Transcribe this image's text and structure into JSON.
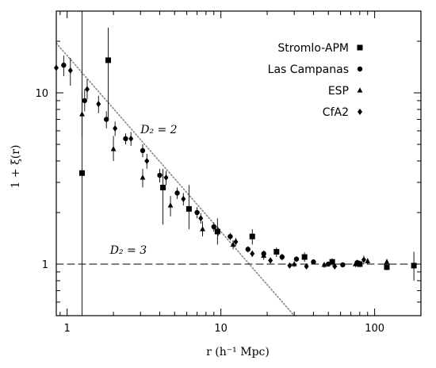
{
  "chart_data": {
    "type": "scatter",
    "xscale": "log",
    "yscale": "log",
    "xlim": [
      0.85,
      200
    ],
    "ylim": [
      0.5,
      30
    ],
    "xticks": [
      1,
      10,
      100
    ],
    "xtick_labels": [
      "1",
      "10",
      "100"
    ],
    "yticks": [
      1,
      10
    ],
    "ytick_labels": [
      "1",
      "10"
    ],
    "xlabel": "r (h⁻¹ Mpc)",
    "ylabel": "1 + ξ(r)",
    "legend_position": "top-right",
    "reference_lines": [
      {
        "name": "D₂ = 2",
        "style": "dotted",
        "color": "#888888",
        "x": [
          0.85,
          30
        ],
        "y": [
          19.5,
          0.5
        ]
      },
      {
        "name": "D₂ = 3",
        "style": "dashed",
        "color": "#000000",
        "x": [
          0.85,
          200
        ],
        "y": [
          1,
          1
        ]
      }
    ],
    "annotations": [
      {
        "text": "D₂ = 2",
        "x": 3.0,
        "y": 5.8
      },
      {
        "text": "D₂ = 3",
        "x": 1.9,
        "y": 1.15
      }
    ],
    "series": [
      {
        "name": "Stromlo-APM",
        "marker": "square",
        "points": [
          {
            "x": 1.25,
            "y": 3.4,
            "lo": 0.5,
            "hi": 30
          },
          {
            "x": 1.85,
            "y": 15.5,
            "lo": 7,
            "hi": 24
          },
          {
            "x": 4.2,
            "y": 2.8,
            "lo": 1.7,
            "hi": 3.6
          },
          {
            "x": 6.2,
            "y": 2.1,
            "lo": 1.6,
            "hi": 2.9
          },
          {
            "x": 9.5,
            "y": 1.55,
            "lo": 1.3,
            "hi": 1.85
          },
          {
            "x": 16,
            "y": 1.45,
            "lo": 1.3,
            "hi": 1.6
          },
          {
            "x": 23,
            "y": 1.18,
            "lo": 1.1,
            "hi": 1.25
          },
          {
            "x": 35,
            "y": 1.1,
            "lo": 1.03,
            "hi": 1.17
          },
          {
            "x": 53,
            "y": 1.03,
            "lo": 0.98,
            "hi": 1.08
          },
          {
            "x": 80,
            "y": 1.0,
            "lo": 0.96,
            "hi": 1.05
          },
          {
            "x": 120,
            "y": 0.96,
            "lo": 0.92,
            "hi": 1.0
          },
          {
            "x": 180,
            "y": 0.98,
            "lo": 0.8,
            "hi": 1.18
          }
        ]
      },
      {
        "name": "Las Campanas",
        "marker": "circle",
        "points": [
          {
            "x": 0.95,
            "y": 14.5,
            "lo": 12.5,
            "hi": 16.5
          },
          {
            "x": 1.3,
            "y": 9.0,
            "lo": 7.8,
            "hi": 10.5
          },
          {
            "x": 1.8,
            "y": 7.0,
            "lo": 6.2,
            "hi": 7.8
          },
          {
            "x": 2.4,
            "y": 5.4,
            "lo": 5.0,
            "hi": 5.8
          },
          {
            "x": 3.1,
            "y": 4.6,
            "lo": 4.2,
            "hi": 5.0
          },
          {
            "x": 4.0,
            "y": 3.3,
            "lo": 3.0,
            "hi": 3.6
          },
          {
            "x": 5.2,
            "y": 2.6,
            "lo": 2.4,
            "hi": 2.8
          },
          {
            "x": 7.0,
            "y": 2.0,
            "lo": 1.85,
            "hi": 2.15
          },
          {
            "x": 9.0,
            "y": 1.65,
            "lo": 1.55,
            "hi": 1.75
          },
          {
            "x": 11.5,
            "y": 1.45,
            "lo": 1.38,
            "hi": 1.52
          },
          {
            "x": 15,
            "y": 1.22,
            "lo": 1.17,
            "hi": 1.27
          },
          {
            "x": 19,
            "y": 1.15,
            "lo": 1.1,
            "hi": 1.2
          },
          {
            "x": 25,
            "y": 1.1,
            "lo": 1.05,
            "hi": 1.15
          },
          {
            "x": 31,
            "y": 1.07,
            "lo": 1.03,
            "hi": 1.11
          },
          {
            "x": 40,
            "y": 1.03,
            "lo": 1.0,
            "hi": 1.06
          },
          {
            "x": 50,
            "y": 1.0,
            "lo": 0.97,
            "hi": 1.03
          },
          {
            "x": 62,
            "y": 0.99,
            "lo": 0.96,
            "hi": 1.02
          },
          {
            "x": 77,
            "y": 1.02,
            "lo": 0.98,
            "hi": 1.06
          }
        ]
      },
      {
        "name": "ESP",
        "marker": "triangle",
        "points": [
          {
            "x": 1.25,
            "y": 7.5,
            "lo": 5.5,
            "hi": 10
          },
          {
            "x": 2.0,
            "y": 4.7,
            "lo": 4.0,
            "hi": 5.6
          },
          {
            "x": 3.1,
            "y": 3.2,
            "lo": 2.8,
            "hi": 3.6
          },
          {
            "x": 4.7,
            "y": 2.2,
            "lo": 1.9,
            "hi": 2.5
          },
          {
            "x": 7.6,
            "y": 1.6,
            "lo": 1.45,
            "hi": 1.78
          },
          {
            "x": 12,
            "y": 1.3,
            "lo": 1.22,
            "hi": 1.38
          },
          {
            "x": 19,
            "y": 1.12,
            "lo": 1.06,
            "hi": 1.18
          },
          {
            "x": 30,
            "y": 1.0,
            "lo": 0.96,
            "hi": 1.04
          },
          {
            "x": 47,
            "y": 0.99,
            "lo": 0.95,
            "hi": 1.03
          },
          {
            "x": 75,
            "y": 1.0,
            "lo": 0.96,
            "hi": 1.04
          },
          {
            "x": 90,
            "y": 1.04,
            "lo": 1.0,
            "hi": 1.08
          },
          {
            "x": 120,
            "y": 1.03,
            "lo": 0.99,
            "hi": 1.07
          }
        ]
      },
      {
        "name": "CfA2",
        "marker": "diamond",
        "points": [
          {
            "x": 0.85,
            "y": 14.0,
            "lo": 11.5,
            "hi": 17.0
          },
          {
            "x": 1.05,
            "y": 13.5,
            "lo": 11.0,
            "hi": 16.0
          },
          {
            "x": 1.35,
            "y": 10.5,
            "lo": 9.2,
            "hi": 12.0
          },
          {
            "x": 1.6,
            "y": 8.6,
            "lo": 7.6,
            "hi": 9.6
          },
          {
            "x": 2.05,
            "y": 6.2,
            "lo": 5.6,
            "hi": 6.8
          },
          {
            "x": 2.6,
            "y": 5.4,
            "lo": 4.9,
            "hi": 5.9
          },
          {
            "x": 3.3,
            "y": 4.0,
            "lo": 3.6,
            "hi": 4.4
          },
          {
            "x": 4.4,
            "y": 3.2,
            "lo": 2.9,
            "hi": 3.5
          },
          {
            "x": 5.7,
            "y": 2.4,
            "lo": 2.2,
            "hi": 2.6
          },
          {
            "x": 7.4,
            "y": 1.85,
            "lo": 1.72,
            "hi": 1.98
          },
          {
            "x": 9.6,
            "y": 1.55,
            "lo": 1.46,
            "hi": 1.64
          },
          {
            "x": 12.5,
            "y": 1.35,
            "lo": 1.28,
            "hi": 1.42
          },
          {
            "x": 16,
            "y": 1.15,
            "lo": 1.1,
            "hi": 1.2
          },
          {
            "x": 21,
            "y": 1.05,
            "lo": 1.01,
            "hi": 1.09
          },
          {
            "x": 28,
            "y": 0.98,
            "lo": 0.95,
            "hi": 1.01
          },
          {
            "x": 36,
            "y": 0.97,
            "lo": 0.94,
            "hi": 1.0
          },
          {
            "x": 55,
            "y": 0.97,
            "lo": 0.94,
            "hi": 1.0
          },
          {
            "x": 85,
            "y": 1.06,
            "lo": 1.0,
            "hi": 1.12
          }
        ]
      }
    ]
  }
}
